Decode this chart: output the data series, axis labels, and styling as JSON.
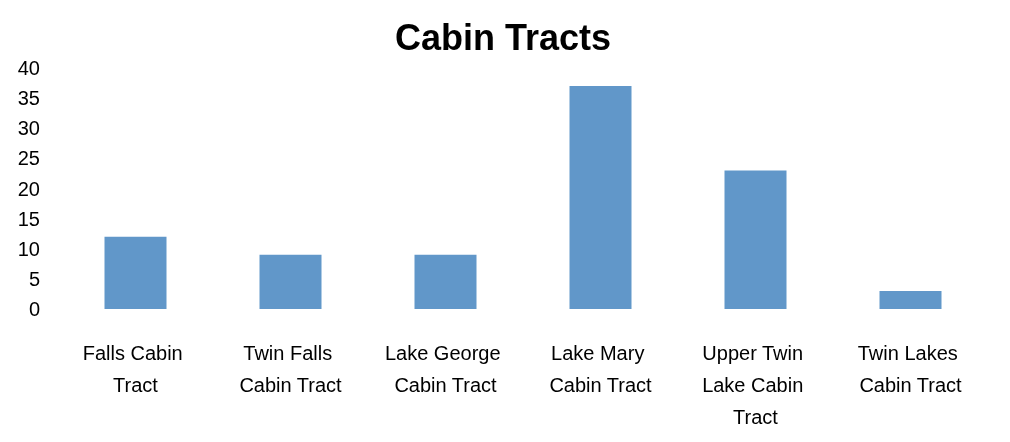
{
  "chart_data": {
    "type": "bar",
    "title": "Cabin Tracts",
    "categories": [
      "Falls Cabin Tract",
      "Twin Falls Cabin Tract",
      "Lake George Cabin Tract",
      "Lake Mary Cabin Tract",
      "Upper Twin Lake Cabin Tract",
      "Twin Lakes Cabin Tract"
    ],
    "values": [
      12,
      9,
      9,
      37,
      23,
      3
    ],
    "color": "#6197c9",
    "ylim": [
      0,
      40
    ],
    "yticks": [
      0,
      5,
      10,
      15,
      20,
      25,
      30,
      35,
      40
    ],
    "grid": false
  }
}
